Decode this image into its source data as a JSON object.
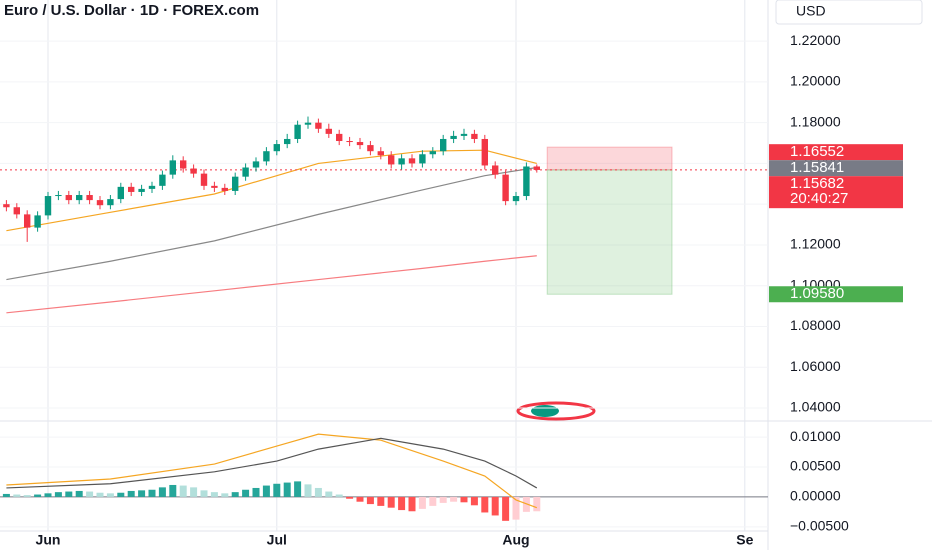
{
  "chart_data": [
    {
      "type": "candlestick",
      "title": "Euro / U.S. Dollar · 1D · FOREX.com",
      "currency": "USD",
      "up_color": "#089981",
      "down_color": "#f23645",
      "grid": true,
      "xlim": [
        -4.615,
        69.23
      ],
      "ylim": [
        1.0336,
        1.2402
      ],
      "xticks": [
        {
          "value": 0,
          "label": "Jun"
        },
        {
          "value": 22,
          "label": "Jul"
        },
        {
          "value": 45,
          "label": "Aug"
        },
        {
          "value": 67,
          "label": "Se"
        }
      ],
      "yticks": [
        {
          "value": 1.22,
          "label": "1.22000"
        },
        {
          "value": 1.2,
          "label": "1.20000"
        },
        {
          "value": 1.18,
          "label": "1.18000"
        },
        {
          "value": 1.16,
          "label": "1.16000"
        },
        {
          "value": 1.14,
          "label": "1.14000"
        },
        {
          "value": 1.12,
          "label": "1.12000"
        },
        {
          "value": 1.1,
          "label": "1.10000"
        },
        {
          "value": 1.08,
          "label": "1.08000"
        },
        {
          "value": 1.06,
          "label": "1.06000"
        },
        {
          "value": 1.04,
          "label": "1.04000"
        }
      ],
      "x": [
        -4,
        -3,
        -2,
        -1,
        0,
        1,
        2,
        3,
        4,
        5,
        6,
        7,
        8,
        9,
        10,
        11,
        12,
        13,
        14,
        15,
        16,
        17,
        18,
        19,
        20,
        21,
        22,
        23,
        24,
        25,
        26,
        27,
        28,
        29,
        30,
        31,
        32,
        33,
        34,
        35,
        36,
        37,
        38,
        39,
        40,
        41,
        42,
        43,
        44,
        45,
        46,
        47
      ],
      "open": [
        1.14,
        1.1385,
        1.135,
        1.1285,
        1.1345,
        1.144,
        1.1445,
        1.142,
        1.1445,
        1.142,
        1.1395,
        1.1425,
        1.1485,
        1.146,
        1.1475,
        1.149,
        1.1545,
        1.1615,
        1.1575,
        1.155,
        1.149,
        1.148,
        1.1465,
        1.1535,
        1.158,
        1.161,
        1.166,
        1.1695,
        1.172,
        1.179,
        1.18,
        1.177,
        1.1745,
        1.171,
        1.1705,
        1.169,
        1.166,
        1.164,
        1.1595,
        1.1625,
        1.16,
        1.1645,
        1.166,
        1.172,
        1.1735,
        1.1745,
        1.172,
        1.159,
        1.1545,
        1.1415,
        1.144,
        1.1585
      ],
      "high": [
        1.142,
        1.1405,
        1.137,
        1.1365,
        1.146,
        1.1465,
        1.1465,
        1.1465,
        1.1465,
        1.144,
        1.1445,
        1.1505,
        1.1505,
        1.1495,
        1.151,
        1.1565,
        1.164,
        1.1635,
        1.1595,
        1.157,
        1.151,
        1.15,
        1.1555,
        1.16,
        1.163,
        1.168,
        1.1715,
        1.1745,
        1.181,
        1.183,
        1.182,
        1.1795,
        1.1765,
        1.173,
        1.1725,
        1.171,
        1.168,
        1.166,
        1.1645,
        1.1645,
        1.1665,
        1.168,
        1.174,
        1.176,
        1.177,
        1.1765,
        1.174,
        1.161,
        1.1565,
        1.146,
        1.1605,
        1.1595
      ],
      "low": [
        1.1365,
        1.133,
        1.1215,
        1.1265,
        1.1325,
        1.142,
        1.14,
        1.14,
        1.14,
        1.1375,
        1.1375,
        1.1405,
        1.144,
        1.144,
        1.1455,
        1.147,
        1.1525,
        1.1555,
        1.153,
        1.147,
        1.146,
        1.1445,
        1.1445,
        1.1515,
        1.156,
        1.159,
        1.164,
        1.1675,
        1.17,
        1.177,
        1.175,
        1.1725,
        1.169,
        1.1685,
        1.167,
        1.164,
        1.162,
        1.1575,
        1.157,
        1.158,
        1.158,
        1.1625,
        1.164,
        1.17,
        1.1715,
        1.17,
        1.157,
        1.1525,
        1.1395,
        1.1395,
        1.142,
        1.1555
      ],
      "close": [
        1.1385,
        1.135,
        1.1285,
        1.1345,
        1.144,
        1.1445,
        1.142,
        1.1445,
        1.142,
        1.1395,
        1.1425,
        1.1485,
        1.146,
        1.1475,
        1.149,
        1.1545,
        1.1615,
        1.1575,
        1.155,
        1.149,
        1.148,
        1.1465,
        1.1535,
        1.158,
        1.161,
        1.166,
        1.1695,
        1.172,
        1.179,
        1.18,
        1.177,
        1.1745,
        1.171,
        1.1705,
        1.169,
        1.166,
        1.164,
        1.1595,
        1.1625,
        1.16,
        1.1645,
        1.166,
        1.172,
        1.1735,
        1.1745,
        1.172,
        1.159,
        1.1545,
        1.1415,
        1.144,
        1.1585,
        1.1568
      ],
      "lines": [
        {
          "color": "#f5a623",
          "x": [
            -4,
            6,
            16,
            26,
            36,
            42,
            47
          ],
          "values": [
            1.127,
            1.136,
            1.145,
            1.16,
            1.166,
            1.1665,
            1.16
          ]
        },
        {
          "color": "#888888",
          "x": [
            -4,
            6,
            16,
            26,
            36,
            42,
            47
          ],
          "values": [
            1.103,
            1.112,
            1.122,
            1.135,
            1.147,
            1.154,
            1.158
          ]
        },
        {
          "color": "#f77c80",
          "x": [
            -4,
            6,
            16,
            26,
            36,
            42,
            47
          ],
          "values": [
            1.0867,
            1.092,
            1.0975,
            1.103,
            1.1085,
            1.112,
            1.1147
          ]
        }
      ],
      "position": {
        "x0": 48,
        "x1": 60,
        "stop": 1.168,
        "entry": 1.15682,
        "target": 1.0958
      },
      "last_price": 1.15682,
      "price_tags": [
        {
          "value": 1.16552,
          "label": "1.16552",
          "color": "#f23645"
        },
        {
          "value": 1.15841,
          "label": "1.15841",
          "color": "#787b86"
        },
        {
          "value": 1.15682,
          "label": "1.15682",
          "color": "#f23645"
        },
        {
          "value": 1.0958,
          "label": "1.09580",
          "color": "#4caf50"
        }
      ],
      "countdown": "20:40:27"
    },
    {
      "type": "macd",
      "xlim": [
        -4.615,
        69.23
      ],
      "ylim": [
        -0.0057,
        0.0127
      ],
      "yticks": [
        {
          "value": 0.01,
          "label": "0.01000"
        },
        {
          "value": 0.005,
          "label": "0.00500"
        },
        {
          "value": 0,
          "label": "0.00000"
        },
        {
          "value": -0.005,
          "label": "−0.00500"
        }
      ],
      "x": [
        -4,
        -3,
        -2,
        -1,
        0,
        1,
        2,
        3,
        4,
        5,
        6,
        7,
        8,
        9,
        10,
        11,
        12,
        13,
        14,
        15,
        16,
        17,
        18,
        19,
        20,
        21,
        22,
        23,
        24,
        25,
        26,
        27,
        28,
        29,
        30,
        31,
        32,
        33,
        34,
        35,
        36,
        37,
        38,
        39,
        40,
        41,
        42,
        43,
        44,
        45,
        46,
        47
      ],
      "histogram": [
        0.0005,
        0.0004,
        0.0003,
        0.0004,
        0.0006,
        0.0008,
        0.0009,
        0.001,
        0.0009,
        0.0007,
        0.0006,
        0.0007,
        0.001,
        0.0011,
        0.0012,
        0.0016,
        0.002,
        0.0019,
        0.0016,
        0.0011,
        0.0008,
        0.0006,
        0.0008,
        0.0012,
        0.0015,
        0.0019,
        0.0022,
        0.0024,
        0.0026,
        0.0021,
        0.0015,
        0.0009,
        0.0004,
        -0.0003,
        -0.0008,
        -0.0012,
        -0.0015,
        -0.0018,
        -0.0022,
        -0.0024,
        -0.002,
        -0.0015,
        -0.001,
        -0.0008,
        -0.0009,
        -0.0014,
        -0.0026,
        -0.0031,
        -0.004,
        -0.0038,
        -0.0025,
        -0.0024
      ],
      "lines": [
        {
          "color": "#f5a623",
          "x": [
            -4,
            6,
            16,
            22,
            26,
            32,
            38,
            42,
            45,
            47
          ],
          "values": [
            0.002,
            0.003,
            0.0055,
            0.0085,
            0.0105,
            0.0095,
            0.006,
            0.0035,
            -0.0005,
            -0.0018
          ]
        },
        {
          "color": "#555555",
          "x": [
            -4,
            6,
            16,
            22,
            26,
            32,
            38,
            42,
            45,
            47
          ],
          "values": [
            0.0015,
            0.0022,
            0.0042,
            0.006,
            0.008,
            0.0098,
            0.008,
            0.006,
            0.0035,
            0.0015
          ]
        }
      ]
    }
  ]
}
